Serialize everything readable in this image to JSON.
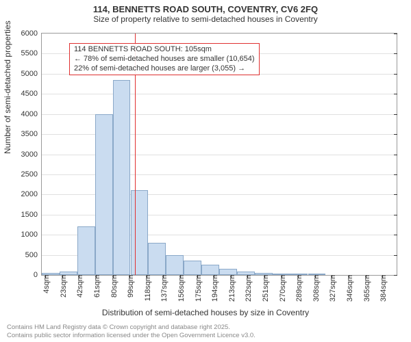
{
  "title": "114, BENNETTS ROAD SOUTH, COVENTRY, CV6 2FQ",
  "subtitle": "Size of property relative to semi-detached houses in Coventry",
  "chart": {
    "type": "histogram",
    "background_color": "#ffffff",
    "grid_color": "#e0e0e0",
    "axis_color": "#999999",
    "bar_fill": "#cadcf0",
    "bar_stroke": "#8aa8c8",
    "refline_color": "#e03030",
    "refline_x": 105,
    "title_fontsize": 13,
    "label_fontsize": 12,
    "tick_fontsize": 11,
    "ylabel": "Number of semi-detached properties",
    "xlabel": "Distribution of semi-detached houses by size in Coventry",
    "ylim": [
      0,
      6000
    ],
    "ytick_step": 500,
    "xlim": [
      0,
      400
    ],
    "xtick_start": 4,
    "xtick_step": 19,
    "xtick_suffix": "sqm",
    "bin_start": 0,
    "bin_width": 20,
    "bar_values": [
      50,
      80,
      1200,
      4000,
      4850,
      2100,
      800,
      500,
      350,
      250,
      150,
      80,
      50,
      30,
      10,
      5,
      0,
      0,
      0,
      0
    ],
    "annotation": {
      "lines": [
        "114 BENNETTS ROAD SOUTH: 105sqm",
        "← 78% of semi-detached houses are smaller (10,654)",
        "22% of semi-detached houses are larger (3,055) →"
      ],
      "border_color": "#e03030",
      "fontsize": 11
    }
  },
  "footer": {
    "line1": "Contains HM Land Registry data © Crown copyright and database right 2025.",
    "line2": "Contains public sector information licensed under the Open Government Licence v3.0.",
    "color": "#888888",
    "fontsize": 9.5
  }
}
